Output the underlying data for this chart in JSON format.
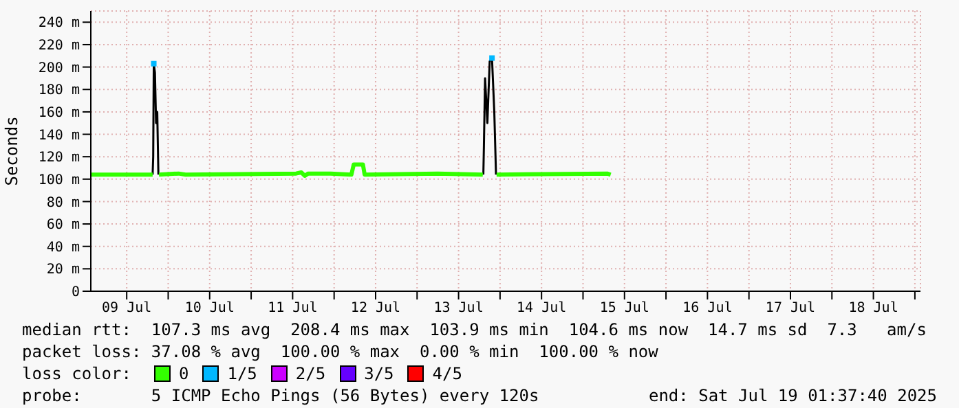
{
  "chart_data": {
    "type": "line",
    "ylabel": "Seconds",
    "legend_title": "loss color:",
    "legend": "bottom",
    "grid": true,
    "line_style": "solid",
    "xlim": [
      "2025-07-09T01:37",
      "2025-07-19T01:37"
    ],
    "xticks": [
      {
        "value": "2025-07-09T12:00",
        "label": "09 Jul"
      },
      {
        "value": "2025-07-10T00:00",
        "label": null
      },
      {
        "value": "2025-07-10T12:00",
        "label": "10 Jul"
      },
      {
        "value": "2025-07-11T00:00",
        "label": null
      },
      {
        "value": "2025-07-11T12:00",
        "label": "11 Jul"
      },
      {
        "value": "2025-07-12T00:00",
        "label": null
      },
      {
        "value": "2025-07-12T12:00",
        "label": "12 Jul"
      },
      {
        "value": "2025-07-13T00:00",
        "label": null
      },
      {
        "value": "2025-07-13T12:00",
        "label": "13 Jul"
      },
      {
        "value": "2025-07-14T00:00",
        "label": null
      },
      {
        "value": "2025-07-14T12:00",
        "label": "14 Jul"
      },
      {
        "value": "2025-07-15T00:00",
        "label": null
      },
      {
        "value": "2025-07-15T12:00",
        "label": "15 Jul"
      },
      {
        "value": "2025-07-16T00:00",
        "label": null
      },
      {
        "value": "2025-07-16T12:00",
        "label": "16 Jul"
      },
      {
        "value": "2025-07-17T00:00",
        "label": null
      },
      {
        "value": "2025-07-17T12:00",
        "label": "17 Jul"
      },
      {
        "value": "2025-07-18T00:00",
        "label": null
      },
      {
        "value": "2025-07-18T12:00",
        "label": "18 Jul"
      },
      {
        "value": "2025-07-19T00:00",
        "label": null
      }
    ],
    "ylim": [
      0,
      250
    ],
    "yticks": [
      0,
      {
        "value": 20,
        "label": "20 m"
      },
      {
        "value": 40,
        "label": "40 m"
      },
      {
        "value": 60,
        "label": "60 m"
      },
      {
        "value": 80,
        "label": "80 m"
      },
      {
        "value": 100,
        "label": "100 m"
      },
      {
        "value": 120,
        "label": "120 m"
      },
      {
        "value": 140,
        "label": "140 m"
      },
      {
        "value": 160,
        "label": "160 m"
      },
      {
        "value": 180,
        "label": "180 m"
      },
      {
        "value": 200,
        "label": "200 m"
      },
      {
        "value": 220,
        "label": "220 m"
      },
      {
        "value": 240,
        "label": "240 m"
      }
    ],
    "series": [
      {
        "color": "#000000",
        "marker": "none",
        "x": [
          "2025-07-09T19:30",
          "2025-07-09T19:40",
          "2025-07-09T19:50",
          "2025-07-09T20:10",
          "2025-07-09T20:30",
          "2025-07-09T20:50",
          "2025-07-09T21:10",
          "2025-07-11T00:00",
          "2025-07-13T19:10",
          "2025-07-13T19:20",
          "2025-07-13T19:40",
          "2025-07-13T20:20",
          "2025-07-13T21:00",
          "2025-07-13T21:40",
          "2025-07-13T22:20",
          "2025-07-13T22:50"
        ],
        "values": [
          104,
          120,
          203,
          195,
          150,
          160,
          104,
          null,
          104,
          130,
          190,
          150,
          205,
          208,
          160,
          104
        ]
      },
      {
        "name": "0",
        "color": "#33ff00",
        "marker": "none",
        "x": [
          "2025-07-09T01:37",
          "2025-07-09T19:30",
          "2025-07-09T19:40",
          "2025-07-09T21:10",
          "2025-07-09T21:20",
          "2025-07-10T03:00",
          "2025-07-10T05:00",
          "2025-07-11T13:00",
          "2025-07-11T14:30",
          "2025-07-11T15:30",
          "2025-07-11T16:30",
          "2025-07-11T23:00",
          "2025-07-12T05:00",
          "2025-07-12T05:40",
          "2025-07-12T08:20",
          "2025-07-12T08:50",
          "2025-07-13T06:00",
          "2025-07-13T19:00",
          "2025-07-13T19:10",
          "2025-07-13T22:50",
          "2025-07-13T23:00",
          "2025-07-15T07:00",
          "2025-07-15T08:00"
        ],
        "values": [
          104,
          104,
          null,
          null,
          104,
          105,
          104,
          105,
          106,
          103,
          105,
          105,
          104,
          113,
          113,
          104,
          105,
          104,
          null,
          null,
          104,
          105,
          104
        ]
      },
      {
        "name": "1/5",
        "type": "scatter",
        "color": "#00b8ff",
        "marker": "square",
        "x": [
          "2025-07-09T19:50",
          "2025-07-13T21:40"
        ],
        "values": [
          203,
          208
        ]
      },
      {
        "name": "2/5",
        "color": "#cc00ff"
      },
      {
        "name": "3/5",
        "color": "#6600ff"
      },
      {
        "name": "4/5",
        "color": "#ff0000"
      }
    ],
    "annotations": [
      "median rtt:  107.3 ms avg  208.4 ms max  103.9 ms min  104.6 ms now  14.7 ms sd  7.3   am/s",
      "packet loss: 37.08 % avg  100.00 % max  0.00 % min  100.00 % now",
      "probe:       5 ICMP Echo Pings (56 Bytes) every 120s",
      "end: Sat Jul 19 01:37:40 2025"
    ]
  }
}
